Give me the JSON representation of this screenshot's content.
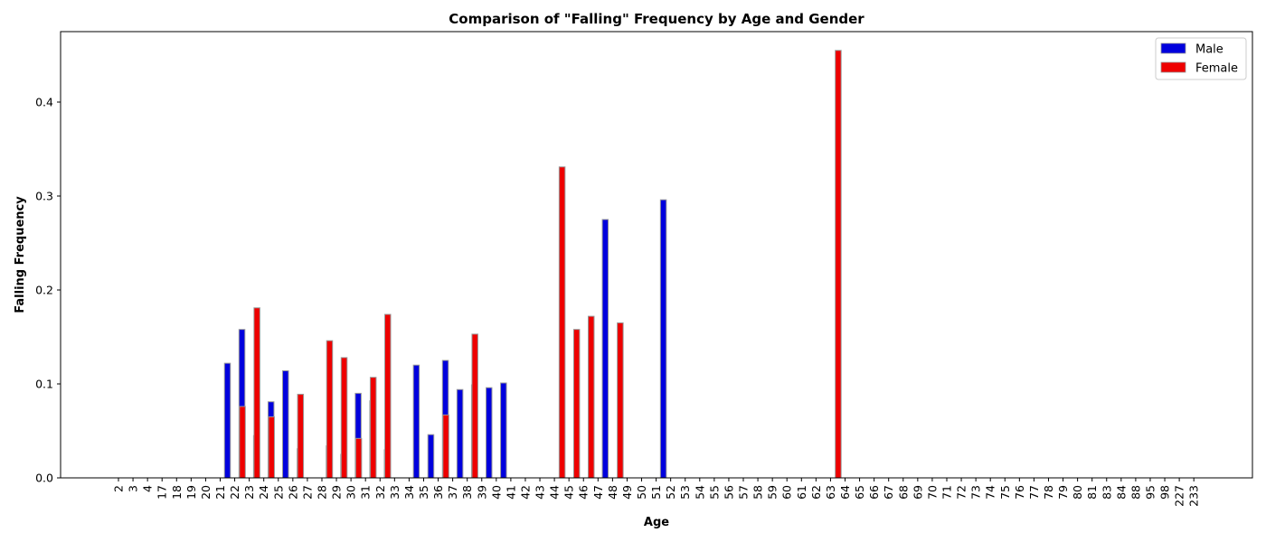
{
  "chart_data": {
    "type": "bar",
    "title": "Comparison of \"Falling\" Frequency by Age and Gender",
    "xlabel": "Age",
    "ylabel": "Falling Frequency",
    "ylim": [
      0,
      0.475
    ],
    "yticks": [
      0.0,
      0.1,
      0.2,
      0.3,
      0.4
    ],
    "ytick_labels": [
      "0.0",
      "0.1",
      "0.2",
      "0.3",
      "0.4"
    ],
    "categories": [
      "2",
      "3",
      "4",
      "17",
      "18",
      "19",
      "20",
      "21",
      "22",
      "23",
      "24",
      "25",
      "26",
      "27",
      "28",
      "29",
      "30",
      "31",
      "32",
      "33",
      "34",
      "35",
      "36",
      "37",
      "38",
      "39",
      "40",
      "41",
      "42",
      "43",
      "44",
      "45",
      "46",
      "47",
      "48",
      "49",
      "50",
      "51",
      "52",
      "53",
      "54",
      "55",
      "56",
      "57",
      "58",
      "59",
      "60",
      "61",
      "62",
      "63",
      "64",
      "65",
      "66",
      "67",
      "68",
      "69",
      "70",
      "71",
      "72",
      "73",
      "74",
      "75",
      "76",
      "77",
      "78",
      "79",
      "80",
      "81",
      "83",
      "84",
      "88",
      "95",
      "98",
      "227",
      "233"
    ],
    "series": [
      {
        "name": "Male",
        "color": "#0000dd",
        "values": [
          0,
          0,
          0,
          0,
          0,
          0,
          0,
          0.122,
          0.158,
          0.045,
          0.081,
          0.114,
          0.031,
          0,
          0.034,
          0.025,
          0.09,
          0.082,
          0.03,
          0,
          0.12,
          0.046,
          0.125,
          0.094,
          0.099,
          0.096,
          0.101,
          0,
          0,
          0,
          0,
          0,
          0,
          0.275,
          0,
          0,
          0,
          0.296,
          0,
          0,
          0,
          0,
          0,
          0,
          0,
          0,
          0,
          0,
          0,
          0,
          0,
          0,
          0,
          0,
          0,
          0,
          0,
          0,
          0,
          0,
          0,
          0,
          0,
          0,
          0,
          0,
          0,
          0,
          0,
          0,
          0,
          0,
          0,
          0,
          0
        ]
      },
      {
        "name": "Female",
        "color": "#ee0000",
        "values": [
          0,
          0,
          0,
          0,
          0,
          0,
          0,
          0,
          0.076,
          0.181,
          0.065,
          0,
          0.089,
          0,
          0.146,
          0.128,
          0.042,
          0.107,
          0.174,
          0,
          0,
          0,
          0.067,
          0,
          0.153,
          0,
          0,
          0,
          0,
          0,
          0.331,
          0.158,
          0.172,
          0,
          0.165,
          0,
          0,
          0,
          0,
          0,
          0,
          0,
          0,
          0,
          0,
          0,
          0,
          0,
          0,
          0.455,
          0,
          0,
          0,
          0,
          0,
          0,
          0,
          0,
          0,
          0,
          0,
          0,
          0,
          0,
          0,
          0,
          0,
          0,
          0,
          0,
          0,
          0,
          0,
          0,
          0
        ]
      }
    ],
    "legend": {
      "position": "top-right",
      "entries": [
        "Male",
        "Female"
      ]
    },
    "grid": false
  }
}
